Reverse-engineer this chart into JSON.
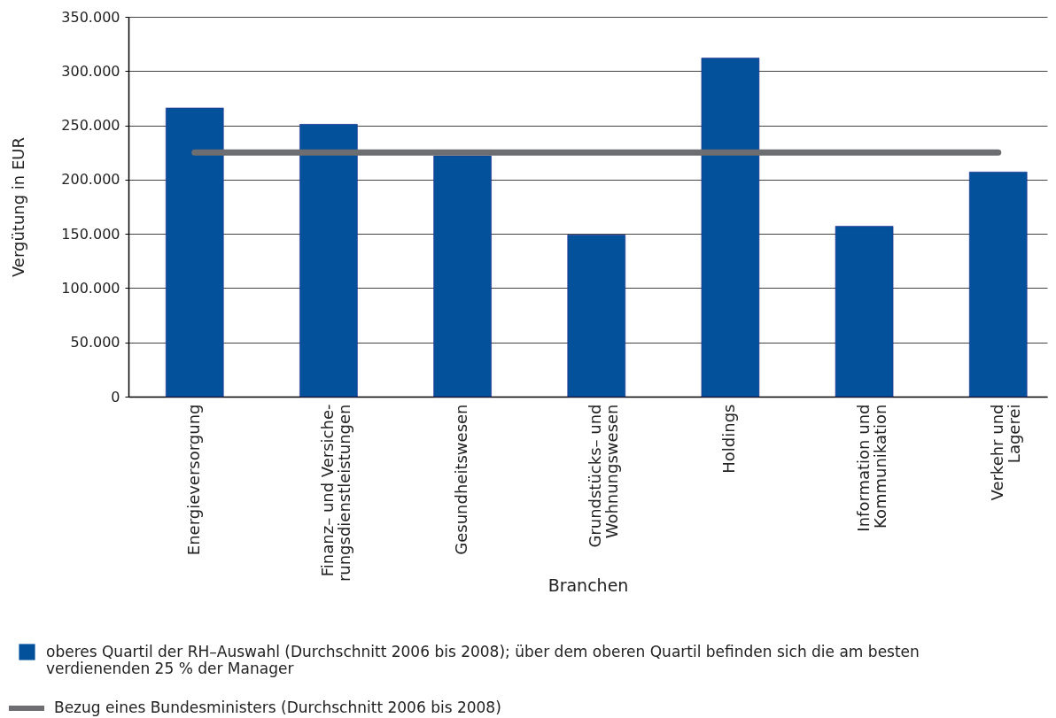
{
  "chart_data": {
    "type": "bar",
    "xlabel": "Branchen",
    "ylabel": "Vergütung in EUR",
    "categories": [
      "Energieversorgung",
      "Finanz– und Versiche-\nrungsdienstleistungen",
      "Gesundheitswesen",
      "Grundstücks– und\nWohnungswesen",
      "Holdings",
      "Information und\nKommunikation",
      "Verkehr und\nLagerei"
    ],
    "series": [
      {
        "name": "oberes Quartil der RH–Auswahl (Durchschnitt 2006 bis 2008); über dem oberen Quartil befinden sich die am besten verdienenden 25 % der Manager",
        "color": "#03509b",
        "values": [
          266000,
          251000,
          222000,
          149000,
          312000,
          157000,
          207000
        ]
      },
      {
        "name": "Bezug eines Bundesministers (Durchschnitt 2006 bis 2008)",
        "type": "line",
        "color": "#6d6e71",
        "values": [
          225000,
          225000,
          225000,
          225000,
          225000,
          225000,
          225000
        ]
      }
    ],
    "ylim": [
      0,
      350000
    ],
    "yticks": [
      0,
      {
        "value": 50000,
        "label": "50.000"
      },
      {
        "value": 100000,
        "label": "100.000"
      },
      {
        "value": 150000,
        "label": "150.000"
      },
      {
        "value": 200000,
        "label": "200.000"
      },
      {
        "value": 250000,
        "label": "250.000"
      },
      {
        "value": 300000,
        "label": "300.000"
      },
      {
        "value": 350000,
        "label": "350.000"
      }
    ],
    "grid": "y",
    "legend": "bottom left"
  }
}
